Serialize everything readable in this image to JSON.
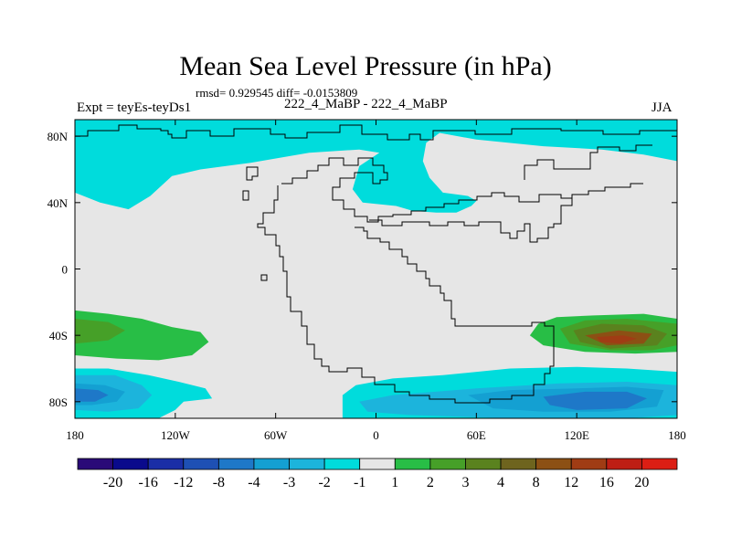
{
  "title": "Mean Sea Level Pressure (in hPa)",
  "stats": "rmsd= 0.929545 diff= -0.0153809",
  "experiment": "Expt = teyEs-teyDs1",
  "center_label": "222_4_MaBP - 222_4_MaBP",
  "season": "JJA",
  "colors": {
    "background_field": "#e6e6e6",
    "coast": "#000000"
  },
  "chart_data": {
    "type": "heatmap",
    "variable": "Mean Sea Level Pressure difference",
    "units": "hPa",
    "xlim": [
      -180,
      180
    ],
    "ylim": [
      -90,
      90
    ],
    "x_ticks": [
      {
        "value": -180,
        "label": "180"
      },
      {
        "value": -120,
        "label": "120W"
      },
      {
        "value": -60,
        "label": "60W"
      },
      {
        "value": 0,
        "label": "0"
      },
      {
        "value": 60,
        "label": "60E"
      },
      {
        "value": 120,
        "label": "120E"
      },
      {
        "value": 180,
        "label": "180"
      }
    ],
    "y_ticks": [
      {
        "value": 80,
        "label": "80N"
      },
      {
        "value": 40,
        "label": "40N"
      },
      {
        "value": 0,
        "label": "0"
      },
      {
        "value": -40,
        "label": "40S"
      },
      {
        "value": -80,
        "label": "80S"
      }
    ],
    "colorbar": {
      "colors": [
        "#2a0a78",
        "#0a0a8c",
        "#1a2ea6",
        "#1e50b4",
        "#1e78c8",
        "#14a0d2",
        "#1cb4dc",
        "#00dcdc",
        "#e6e6e6",
        "#28be46",
        "#46a028",
        "#5a821e",
        "#6e641e",
        "#8c5014",
        "#a03c14",
        "#be1e14",
        "#dc1e14"
      ],
      "labels": [
        "-20",
        "-16",
        "-12",
        "-8",
        "-4",
        "-3",
        "-2",
        "-1",
        "1",
        "2",
        "3",
        "4",
        "8",
        "12",
        "16",
        "20"
      ]
    },
    "regions": [
      {
        "level": "-1",
        "color": "#00dcdc",
        "points": [
          [
            -180,
            90
          ],
          [
            180,
            90
          ],
          [
            180,
            65
          ],
          [
            160,
            69
          ],
          [
            135,
            72
          ],
          [
            100,
            74
          ],
          [
            60,
            78
          ],
          [
            38,
            82
          ],
          [
            30,
            76
          ],
          [
            28,
            65
          ],
          [
            32,
            55
          ],
          [
            40,
            46
          ],
          [
            55,
            44
          ],
          [
            60,
            41
          ],
          [
            57,
            38
          ],
          [
            48,
            34
          ],
          [
            36,
            34
          ],
          [
            22,
            35
          ],
          [
            12,
            38
          ],
          [
            -8,
            40
          ],
          [
            -14,
            48
          ],
          [
            -10,
            62
          ],
          [
            2,
            70
          ],
          [
            -10,
            72
          ],
          [
            -40,
            70
          ],
          [
            -75,
            64
          ],
          [
            -105,
            60
          ],
          [
            -122,
            56
          ],
          [
            -135,
            44
          ],
          [
            -148,
            36
          ],
          [
            -165,
            40
          ],
          [
            -180,
            46
          ]
        ]
      },
      {
        "level": "-1",
        "color": "#00dcdc",
        "points": [
          [
            -180,
            -60
          ],
          [
            -160,
            -60
          ],
          [
            -136,
            -64
          ],
          [
            -118,
            -68
          ],
          [
            -102,
            -72
          ],
          [
            -98,
            -78
          ],
          [
            -115,
            -80
          ],
          [
            -120,
            -85
          ],
          [
            -130,
            -90
          ],
          [
            -180,
            -90
          ]
        ]
      },
      {
        "level": "-1",
        "color": "#00dcdc",
        "points": [
          [
            -20,
            -90
          ],
          [
            -20,
            -76
          ],
          [
            -12,
            -70
          ],
          [
            10,
            -66
          ],
          [
            40,
            -64
          ],
          [
            80,
            -60
          ],
          [
            120,
            -59
          ],
          [
            150,
            -60
          ],
          [
            180,
            -62
          ],
          [
            180,
            -90
          ]
        ]
      },
      {
        "level": "-2",
        "color": "#1cb4dc",
        "points": [
          [
            -180,
            -64
          ],
          [
            -156,
            -64
          ],
          [
            -140,
            -70
          ],
          [
            -134,
            -76
          ],
          [
            -142,
            -84
          ],
          [
            -160,
            -86
          ],
          [
            -180,
            -85
          ]
        ]
      },
      {
        "level": "-2",
        "color": "#1cb4dc",
        "points": [
          [
            -10,
            -80
          ],
          [
            10,
            -76
          ],
          [
            60,
            -72
          ],
          [
            110,
            -69
          ],
          [
            150,
            -68
          ],
          [
            180,
            -70
          ],
          [
            180,
            -88
          ],
          [
            150,
            -90
          ],
          [
            80,
            -90
          ],
          [
            20,
            -88
          ],
          [
            -5,
            -86
          ]
        ]
      },
      {
        "level": "-3",
        "color": "#14a0d2",
        "points": [
          [
            -180,
            -69
          ],
          [
            -162,
            -70
          ],
          [
            -150,
            -74
          ],
          [
            -155,
            -80
          ],
          [
            -170,
            -82
          ],
          [
            -180,
            -82
          ]
        ]
      },
      {
        "level": "-3",
        "color": "#14a0d2",
        "points": [
          [
            55,
            -76
          ],
          [
            80,
            -73
          ],
          [
            120,
            -72
          ],
          [
            150,
            -71
          ],
          [
            172,
            -73
          ],
          [
            168,
            -83
          ],
          [
            140,
            -86
          ],
          [
            100,
            -86
          ],
          [
            70,
            -84
          ]
        ]
      },
      {
        "level": "-4",
        "color": "#1e78c8",
        "points": [
          [
            -180,
            -72
          ],
          [
            -166,
            -73
          ],
          [
            -160,
            -76
          ],
          [
            -168,
            -80
          ],
          [
            -180,
            -80
          ]
        ]
      },
      {
        "level": "-4",
        "color": "#1e78c8",
        "points": [
          [
            100,
            -77
          ],
          [
            125,
            -74
          ],
          [
            150,
            -74
          ],
          [
            162,
            -78
          ],
          [
            150,
            -84
          ],
          [
            120,
            -85
          ],
          [
            104,
            -82
          ]
        ]
      },
      {
        "level": "2",
        "color": "#28be46",
        "points": [
          [
            -180,
            -25
          ],
          [
            -160,
            -27
          ],
          [
            -140,
            -30
          ],
          [
            -122,
            -35
          ],
          [
            -105,
            -38
          ],
          [
            -100,
            -44
          ],
          [
            -110,
            -52
          ],
          [
            -130,
            -55
          ],
          [
            -155,
            -54
          ],
          [
            -180,
            -52
          ]
        ]
      },
      {
        "level": "2",
        "color": "#28be46",
        "points": [
          [
            180,
            -30
          ],
          [
            160,
            -27
          ],
          [
            130,
            -28
          ],
          [
            108,
            -29
          ],
          [
            97,
            -33
          ],
          [
            92,
            -40
          ],
          [
            100,
            -46
          ],
          [
            125,
            -50
          ],
          [
            155,
            -51
          ],
          [
            180,
            -50
          ]
        ]
      },
      {
        "level": "3",
        "color": "#46a028",
        "points": [
          [
            -180,
            -30
          ],
          [
            -160,
            -32
          ],
          [
            -150,
            -37
          ],
          [
            -160,
            -43
          ],
          [
            -180,
            -45
          ]
        ]
      },
      {
        "level": "3",
        "color": "#46a028",
        "points": [
          [
            180,
            -33
          ],
          [
            150,
            -30
          ],
          [
            125,
            -31
          ],
          [
            110,
            -36
          ],
          [
            116,
            -45
          ],
          [
            140,
            -49
          ],
          [
            165,
            -49
          ],
          [
            180,
            -46
          ]
        ]
      },
      {
        "level": "4",
        "color": "#5a821e",
        "points": [
          [
            118,
            -37
          ],
          [
            135,
            -33
          ],
          [
            160,
            -34
          ],
          [
            174,
            -39
          ],
          [
            168,
            -46
          ],
          [
            140,
            -48
          ],
          [
            122,
            -44
          ]
        ]
      },
      {
        "level": "8",
        "color": "#8c5014",
        "points": [
          [
            125,
            -40
          ],
          [
            145,
            -37
          ],
          [
            165,
            -39
          ],
          [
            160,
            -45
          ],
          [
            138,
            -46
          ]
        ]
      },
      {
        "level": "12",
        "color": "#a03c14",
        "points": [
          [
            132,
            -41
          ],
          [
            148,
            -40
          ],
          [
            156,
            -42
          ],
          [
            146,
            -45
          ],
          [
            134,
            -44
          ]
        ]
      }
    ]
  }
}
